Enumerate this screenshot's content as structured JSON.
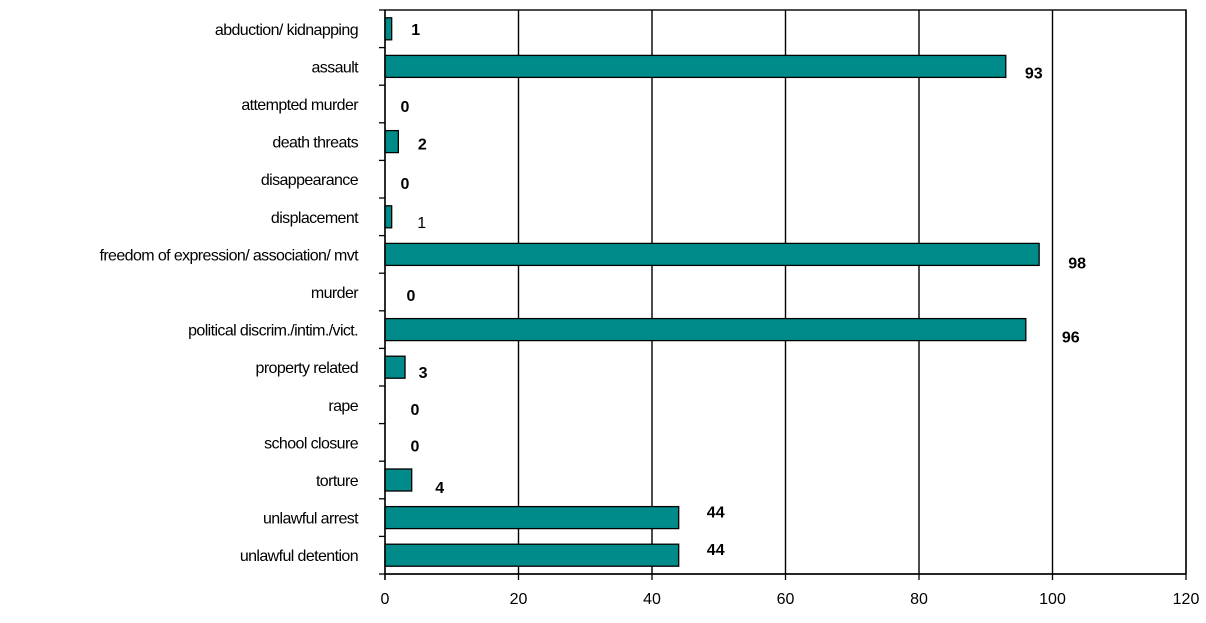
{
  "chart_data": {
    "type": "bar",
    "orientation": "horizontal",
    "categories": [
      "abduction/ kidnapping",
      "assault",
      "attempted murder",
      "death threats",
      "disappearance",
      "displacement",
      "freedom of expression/ association/ mvt",
      "murder",
      "political discrim./intim./vict.",
      "property related",
      "rape",
      "school closure",
      "torture",
      "unlawful arrest",
      "unlawful detention"
    ],
    "values": [
      1,
      93,
      0,
      2,
      0,
      1,
      98,
      0,
      96,
      3,
      0,
      0,
      4,
      44,
      44
    ],
    "value_labels": [
      "1",
      "93",
      "0",
      "2",
      "0",
      "1",
      "98",
      "0",
      "96",
      "3",
      "0",
      "0",
      "4",
      "44",
      "44"
    ],
    "value_label_bold": [
      true,
      true,
      true,
      true,
      true,
      false,
      true,
      true,
      true,
      true,
      true,
      true,
      true,
      true,
      true
    ],
    "xlim": [
      0,
      120
    ],
    "x_ticks": [
      0,
      20,
      40,
      60,
      80,
      100,
      120
    ],
    "grid": "vertical",
    "legend": "none",
    "bar_color": "#008B8B",
    "title": "",
    "xlabel": "",
    "ylabel": ""
  }
}
